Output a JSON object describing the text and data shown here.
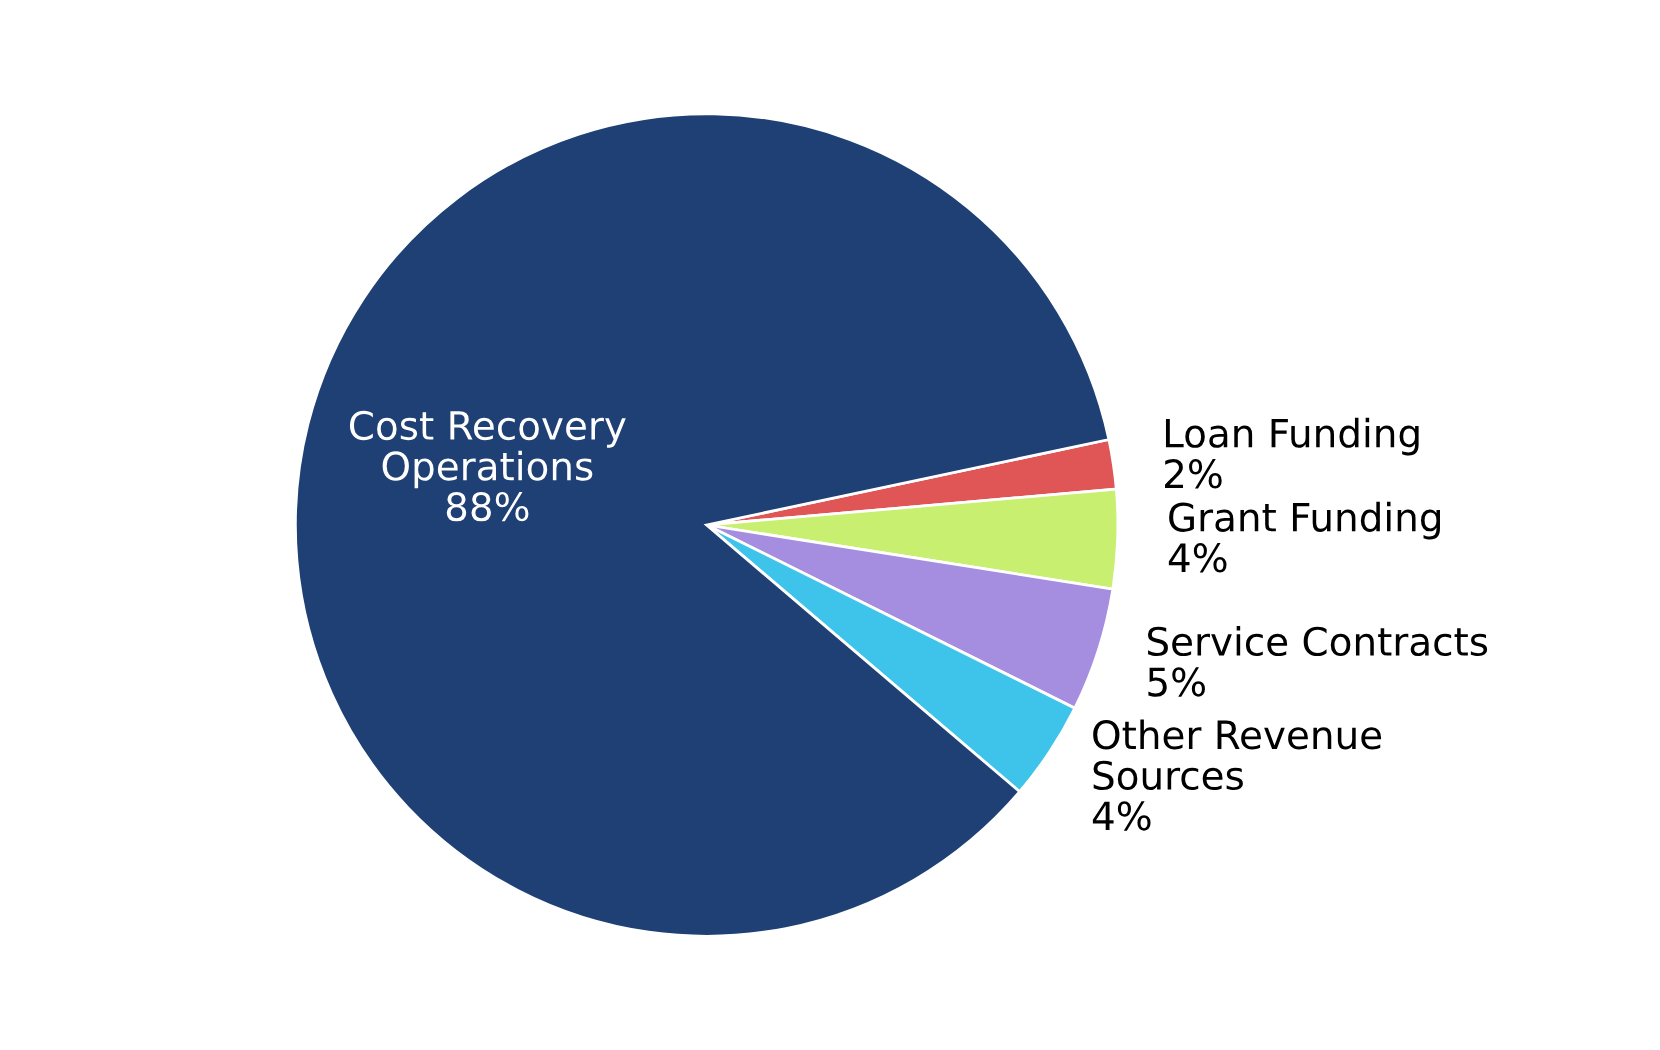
{
  "chart_data": {
    "type": "pie",
    "categories": [
      "Loan Funding",
      "Grant Funding",
      "Service Contracts",
      "Other Revenue Sources",
      "Cost Recovery Operations"
    ],
    "values": [
      2,
      4,
      5,
      4,
      88
    ],
    "value_labels": [
      "2%",
      "4%",
      "5%",
      "4%",
      "88%"
    ],
    "colors": [
      "#e05555",
      "#c8ef70",
      "#a58ee0",
      "#3ec4ea",
      "#1f4075"
    ]
  }
}
